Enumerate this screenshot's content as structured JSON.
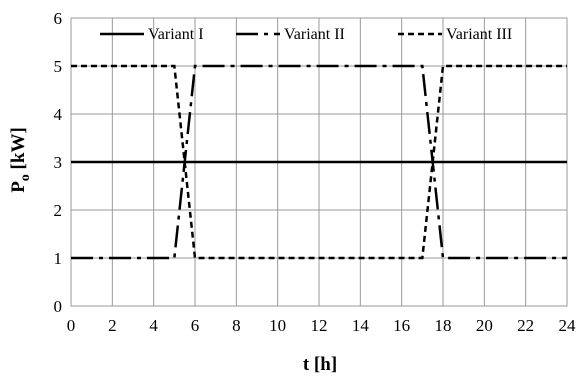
{
  "chart_data": {
    "type": "line",
    "xlabel": "t [h]",
    "ylabel_main": "P",
    "ylabel_sub": "o",
    "ylabel_unit": " [kW]",
    "xlim": [
      0,
      24
    ],
    "ylim": [
      0,
      6
    ],
    "x_ticks": [
      "0",
      "2",
      "4",
      "6",
      "8",
      "10",
      "12",
      "14",
      "16",
      "18",
      "20",
      "22",
      "24"
    ],
    "y_ticks": [
      "0",
      "1",
      "2",
      "3",
      "4",
      "5",
      "6"
    ],
    "grid": true,
    "legend_position": "top",
    "series": [
      {
        "name": "Variant I",
        "style": "solid",
        "color": "#000000",
        "x": [
          0,
          24
        ],
        "y": [
          3,
          3
        ]
      },
      {
        "name": "Variant II",
        "style": "dash-dot",
        "color": "#000000",
        "x": [
          0,
          5,
          6,
          17,
          18,
          24
        ],
        "y": [
          1,
          1,
          5,
          5,
          1,
          1
        ]
      },
      {
        "name": "Variant III",
        "style": "dashed",
        "color": "#000000",
        "x": [
          0,
          5,
          6,
          17,
          18,
          24
        ],
        "y": [
          5,
          5,
          1,
          1,
          5,
          5
        ]
      }
    ]
  }
}
